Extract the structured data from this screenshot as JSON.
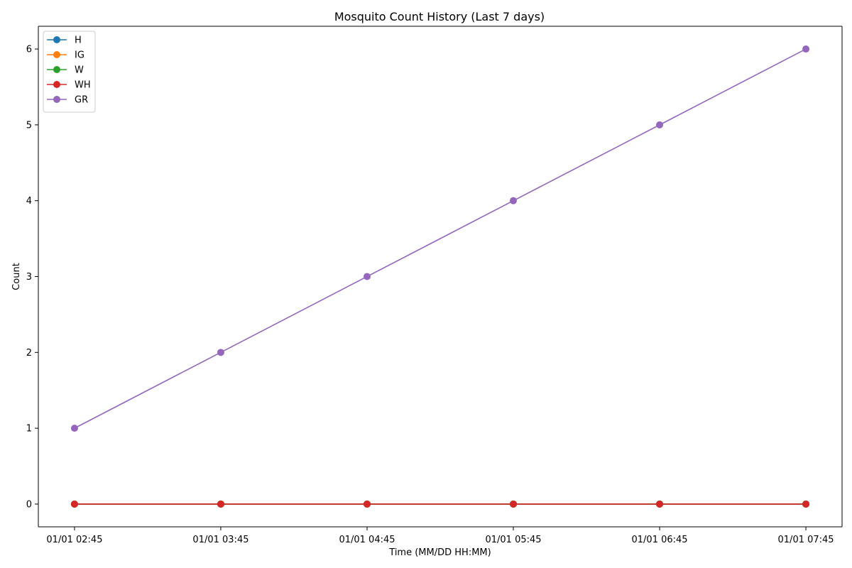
{
  "chart_data": {
    "type": "line",
    "title": "Mosquito Count History (Last 7 days)",
    "xlabel": "Time (MM/DD HH:MM)",
    "ylabel": "Count",
    "categories": [
      "01/01 02:45",
      "01/01 03:45",
      "01/01 04:45",
      "01/01 05:45",
      "01/01 06:45",
      "01/01 07:45"
    ],
    "ylim": [
      -0.3,
      6.3
    ],
    "yticks": [
      0,
      1,
      2,
      3,
      4,
      5,
      6
    ],
    "grid": false,
    "legend_position": "upper-left",
    "series": [
      {
        "name": "H",
        "color": "#1f77b4",
        "values": [
          0,
          0,
          0,
          0,
          0,
          0
        ]
      },
      {
        "name": "IG",
        "color": "#ff7f0e",
        "values": [
          0,
          0,
          0,
          0,
          0,
          0
        ]
      },
      {
        "name": "W",
        "color": "#2ca02c",
        "values": [
          0,
          0,
          0,
          0,
          0,
          0
        ]
      },
      {
        "name": "WH",
        "color": "#d62728",
        "values": [
          0,
          0,
          0,
          0,
          0,
          0
        ]
      },
      {
        "name": "GR",
        "color": "#9467bd",
        "values": [
          1,
          2,
          3,
          4,
          5,
          6
        ]
      }
    ]
  }
}
